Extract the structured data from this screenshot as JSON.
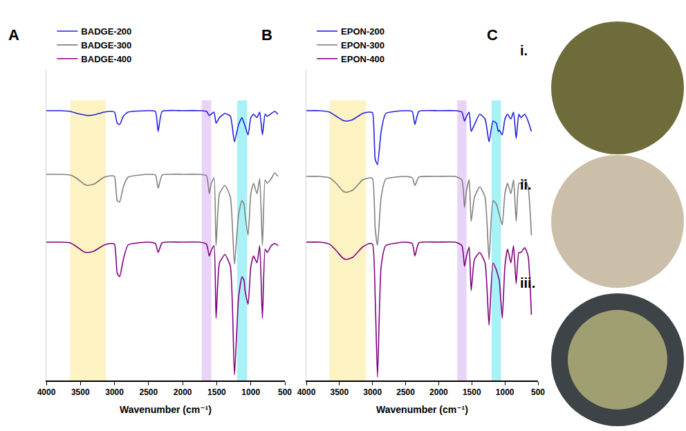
{
  "chart_data": [
    {
      "type": "line",
      "panel": "A",
      "x_title": "Wavenumber (cm⁻¹)",
      "x": [
        4000,
        3800,
        3650,
        3550,
        3450,
        3400,
        3300,
        3150,
        3050,
        3000,
        2960,
        2925,
        2870,
        2800,
        2500,
        2400,
        2360,
        2300,
        2000,
        1750,
        1650,
        1610,
        1580,
        1540,
        1510,
        1460,
        1380,
        1300,
        1240,
        1180,
        1130,
        1100,
        1085,
        1040,
        1000,
        960,
        910,
        870,
        830,
        790,
        760,
        700,
        650,
        600
      ],
      "xlim": [
        4000,
        500
      ],
      "xticks": [
        4000,
        3500,
        3000,
        2500,
        2000,
        1500,
        1000,
        500
      ],
      "ylim": [
        0,
        450
      ],
      "yticks": [],
      "tick_labels": "x",
      "grid": false,
      "legend": "top left",
      "highlights": [
        {
          "x0": 3650,
          "x1": 3130,
          "color": "#fdf2c2"
        },
        {
          "x0": 1720,
          "x1": 1580,
          "color": "#e9d3f8"
        },
        {
          "x0": 1200,
          "x1": 1055,
          "color": "#a8f1f6"
        }
      ],
      "series": [
        {
          "name": "BADGE-200",
          "color": "#1f1fe6",
          "values": [
            390,
            390,
            389,
            386,
            384,
            383,
            384,
            388,
            389,
            388,
            372,
            370,
            382,
            388,
            390,
            389,
            360,
            389,
            390,
            390,
            389,
            383,
            385,
            388,
            372,
            380,
            386,
            382,
            345,
            370,
            380,
            372,
            368,
            355,
            380,
            385,
            380,
            388,
            355,
            385,
            382,
            386,
            389,
            385
          ]
        },
        {
          "name": "BADGE-300",
          "color": "#808080",
          "values": [
            298,
            298,
            297,
            292,
            284,
            282,
            284,
            294,
            296,
            295,
            260,
            258,
            280,
            294,
            298,
            297,
            278,
            297,
            298,
            298,
            296,
            270,
            285,
            293,
            195,
            270,
            282,
            265,
            168,
            240,
            260,
            255,
            240,
            210,
            270,
            285,
            270,
            292,
            195,
            290,
            285,
            292,
            300,
            295
          ]
        },
        {
          "name": "BADGE-400",
          "color": "#800080",
          "values": [
            200,
            200,
            199,
            193,
            186,
            185,
            187,
            196,
            198,
            197,
            155,
            150,
            175,
            196,
            200,
            198,
            185,
            199,
            200,
            200,
            197,
            180,
            188,
            195,
            90,
            170,
            182,
            165,
            8,
            120,
            150,
            145,
            130,
            110,
            165,
            180,
            170,
            195,
            90,
            190,
            185,
            195,
            198,
            195
          ]
        }
      ]
    },
    {
      "type": "line",
      "panel": "B",
      "x_title": "Wavenumber (cm⁻¹)",
      "x": [
        4000,
        3800,
        3650,
        3550,
        3450,
        3400,
        3300,
        3150,
        3050,
        3000,
        2960,
        2925,
        2870,
        2800,
        2500,
        2400,
        2360,
        2300,
        2000,
        1750,
        1650,
        1610,
        1580,
        1540,
        1510,
        1460,
        1380,
        1300,
        1240,
        1180,
        1130,
        1100,
        1085,
        1040,
        1000,
        960,
        910,
        870,
        830,
        790,
        760,
        700,
        650,
        600
      ],
      "xlim": [
        4000,
        500
      ],
      "xticks": [
        4000,
        3500,
        3000,
        2500,
        2000,
        1500,
        1000,
        500
      ],
      "ylim": [
        0,
        450
      ],
      "yticks": [],
      "tick_labels": "x",
      "grid": false,
      "legend": "top left",
      "highlights": [
        {
          "x0": 3650,
          "x1": 3100,
          "color": "#fdf2c2"
        },
        {
          "x0": 1720,
          "x1": 1580,
          "color": "#e9d3f8"
        },
        {
          "x0": 1200,
          "x1": 1060,
          "color": "#a8f1f6"
        }
      ],
      "series": [
        {
          "name": "EPON-200",
          "color": "#1f1fe6",
          "values": [
            390,
            390,
            388,
            382,
            376,
            375,
            377,
            386,
            388,
            387,
            320,
            312,
            360,
            386,
            390,
            389,
            370,
            389,
            390,
            390,
            388,
            375,
            382,
            388,
            360,
            370,
            385,
            378,
            345,
            375,
            372,
            360,
            362,
            355,
            378,
            385,
            378,
            388,
            350,
            385,
            380,
            385,
            375,
            360
          ]
        },
        {
          "name": "EPON-300",
          "color": "#808080",
          "values": [
            295,
            295,
            293,
            285,
            274,
            272,
            275,
            290,
            293,
            292,
            220,
            195,
            265,
            291,
            295,
            293,
            282,
            294,
            295,
            295,
            290,
            250,
            275,
            290,
            230,
            265,
            280,
            265,
            175,
            260,
            255,
            245,
            240,
            225,
            270,
            285,
            270,
            290,
            230,
            285,
            285,
            290,
            280,
            210
          ]
        },
        {
          "name": "EPON-400",
          "color": "#800080",
          "values": [
            200,
            200,
            197,
            188,
            177,
            175,
            178,
            193,
            198,
            197,
            120,
            5,
            165,
            195,
            200,
            198,
            180,
            199,
            200,
            200,
            195,
            165,
            180,
            193,
            130,
            175,
            185,
            170,
            80,
            170,
            160,
            150,
            145,
            90,
            165,
            190,
            170,
            195,
            140,
            185,
            185,
            192,
            180,
            95
          ]
        }
      ]
    }
  ],
  "photos": {
    "panel": "C",
    "items": [
      {
        "label": "i.",
        "color": "#6f6c3c"
      },
      {
        "label": "ii.",
        "color": "#cbbfa9"
      },
      {
        "label": "iii.",
        "color": "#3d4346",
        "inner_color": "#a09f72"
      }
    ]
  }
}
